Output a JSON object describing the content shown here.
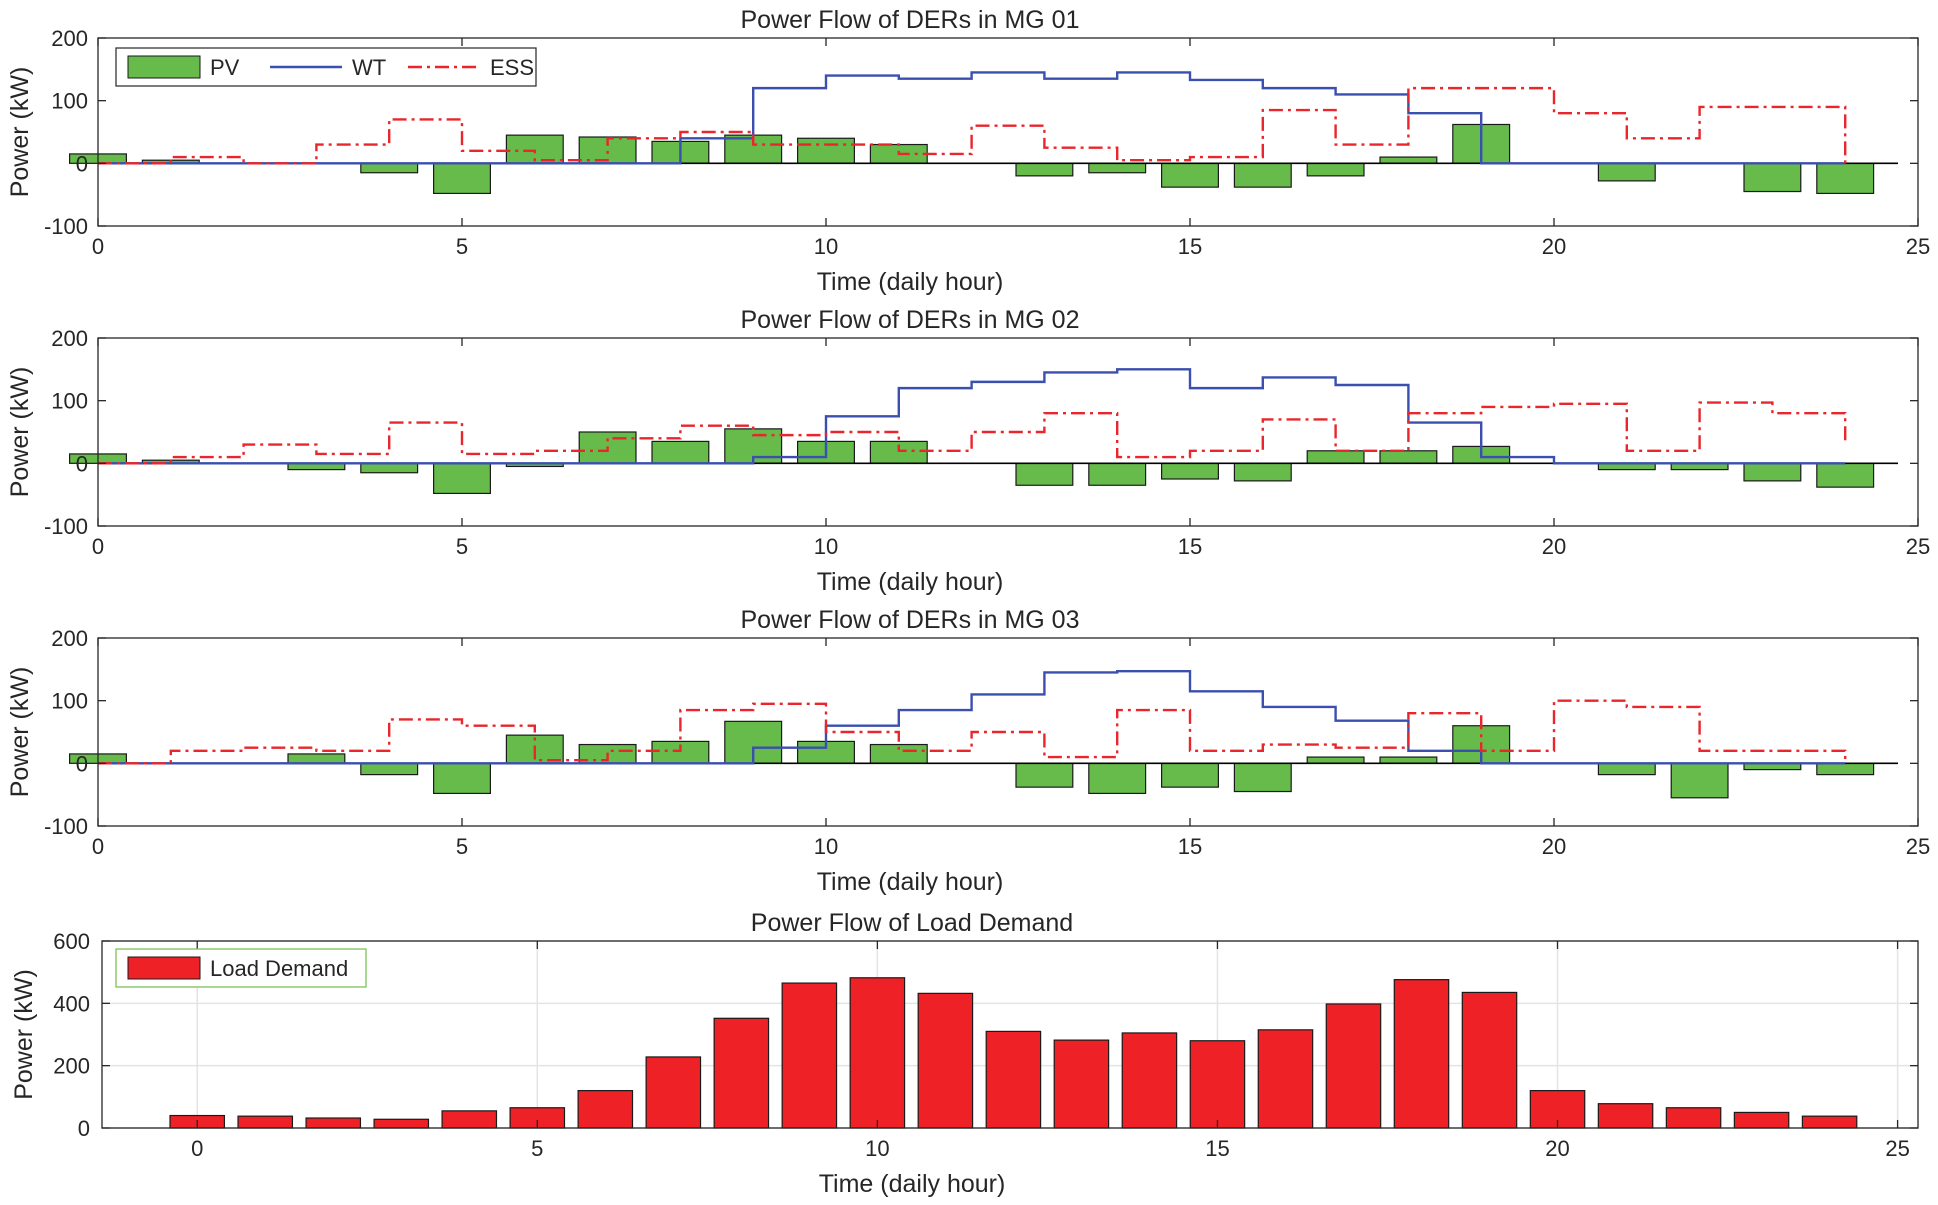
{
  "chart_data": [
    {
      "type": "bar",
      "title": "Power Flow of DERs in MG 01",
      "xlabel": "Time (daily hour)",
      "ylabel": "Power (kW)",
      "xlim": [
        0,
        25
      ],
      "ylim": [
        -100,
        200
      ],
      "xticks": [
        0,
        5,
        10,
        15,
        20,
        25
      ],
      "yticks": [
        -100,
        0,
        100,
        200
      ],
      "legend": [
        "PV",
        "WT",
        "ESS"
      ],
      "series": [
        {
          "name": "PV",
          "kind": "bar",
          "color": "#66bb4a",
          "x": [
            0,
            1,
            2,
            3,
            4,
            5,
            6,
            7,
            8,
            9,
            10,
            11,
            12,
            13,
            14,
            15,
            16,
            17,
            18,
            19,
            20,
            21,
            22,
            23,
            24
          ],
          "values": [
            15,
            5,
            0,
            0,
            -15,
            -48,
            45,
            42,
            35,
            45,
            40,
            30,
            0,
            -20,
            -15,
            -38,
            -38,
            -20,
            10,
            62,
            0,
            -28,
            0,
            -45,
            -48
          ]
        },
        {
          "name": "WT",
          "kind": "stairs",
          "color": "#3a4fae",
          "x": [
            0,
            1,
            2,
            3,
            4,
            5,
            6,
            7,
            8,
            9,
            10,
            11,
            12,
            13,
            14,
            15,
            16,
            17,
            18,
            19,
            20,
            21,
            22,
            23,
            24
          ],
          "values": [
            0,
            0,
            0,
            0,
            0,
            0,
            0,
            0,
            40,
            120,
            140,
            135,
            145,
            135,
            145,
            133,
            120,
            110,
            80,
            0,
            0,
            0,
            0,
            0,
            0
          ]
        },
        {
          "name": "ESS",
          "kind": "stairs",
          "color": "#e8262b",
          "x": [
            0,
            1,
            2,
            3,
            4,
            5,
            6,
            7,
            8,
            9,
            10,
            11,
            12,
            13,
            14,
            15,
            16,
            17,
            18,
            19,
            20,
            21,
            22,
            23,
            24
          ],
          "values": [
            0,
            10,
            0,
            30,
            70,
            20,
            5,
            40,
            50,
            30,
            30,
            15,
            60,
            25,
            5,
            10,
            85,
            30,
            120,
            120,
            80,
            40,
            90,
            90,
            0
          ]
        }
      ]
    },
    {
      "type": "bar",
      "title": "Power Flow of DERs in MG 02",
      "xlabel": "Time (daily hour)",
      "ylabel": "Power (kW)",
      "xlim": [
        0,
        25
      ],
      "ylim": [
        -100,
        200
      ],
      "xticks": [
        0,
        5,
        10,
        15,
        20,
        25
      ],
      "yticks": [
        -100,
        0,
        100,
        200
      ],
      "series": [
        {
          "name": "PV",
          "kind": "bar",
          "color": "#66bb4a",
          "x": [
            0,
            1,
            2,
            3,
            4,
            5,
            6,
            7,
            8,
            9,
            10,
            11,
            12,
            13,
            14,
            15,
            16,
            17,
            18,
            19,
            20,
            21,
            22,
            23,
            24
          ],
          "values": [
            15,
            5,
            0,
            -10,
            -15,
            -48,
            -5,
            50,
            35,
            55,
            35,
            35,
            0,
            -35,
            -35,
            -25,
            -28,
            20,
            20,
            27,
            0,
            -10,
            -10,
            -28,
            -38
          ]
        },
        {
          "name": "WT",
          "kind": "stairs",
          "color": "#3a4fae",
          "x": [
            0,
            1,
            2,
            3,
            4,
            5,
            6,
            7,
            8,
            9,
            10,
            11,
            12,
            13,
            14,
            15,
            16,
            17,
            18,
            19,
            20,
            21,
            22,
            23,
            24
          ],
          "values": [
            0,
            0,
            0,
            0,
            0,
            0,
            0,
            0,
            0,
            10,
            75,
            120,
            130,
            145,
            150,
            120,
            137,
            125,
            65,
            10,
            0,
            0,
            0,
            0,
            0
          ]
        },
        {
          "name": "ESS",
          "kind": "stairs",
          "color": "#e8262b",
          "x": [
            0,
            1,
            2,
            3,
            4,
            5,
            6,
            7,
            8,
            9,
            10,
            11,
            12,
            13,
            14,
            15,
            16,
            17,
            18,
            19,
            20,
            21,
            22,
            23,
            24
          ],
          "values": [
            0,
            10,
            30,
            15,
            65,
            15,
            20,
            40,
            60,
            45,
            50,
            20,
            50,
            80,
            10,
            20,
            70,
            20,
            80,
            90,
            95,
            20,
            97,
            80,
            30
          ]
        }
      ]
    },
    {
      "type": "bar",
      "title": "Power Flow of DERs in MG 03",
      "xlabel": "Time (daily hour)",
      "ylabel": "Power (kW)",
      "xlim": [
        0,
        25
      ],
      "ylim": [
        -100,
        200
      ],
      "xticks": [
        0,
        5,
        10,
        15,
        20,
        25
      ],
      "yticks": [
        -100,
        0,
        100,
        200
      ],
      "series": [
        {
          "name": "PV",
          "kind": "bar",
          "color": "#66bb4a",
          "x": [
            0,
            1,
            2,
            3,
            4,
            5,
            6,
            7,
            8,
            9,
            10,
            11,
            12,
            13,
            14,
            15,
            16,
            17,
            18,
            19,
            20,
            21,
            22,
            23,
            24
          ],
          "values": [
            15,
            0,
            0,
            15,
            -18,
            -48,
            45,
            30,
            35,
            67,
            35,
            30,
            0,
            -38,
            -48,
            -38,
            -45,
            10,
            10,
            60,
            0,
            -18,
            -55,
            -10,
            -18
          ]
        },
        {
          "name": "WT",
          "kind": "stairs",
          "color": "#3a4fae",
          "x": [
            0,
            1,
            2,
            3,
            4,
            5,
            6,
            7,
            8,
            9,
            10,
            11,
            12,
            13,
            14,
            15,
            16,
            17,
            18,
            19,
            20,
            21,
            22,
            23,
            24
          ],
          "values": [
            0,
            0,
            0,
            0,
            0,
            0,
            0,
            0,
            0,
            25,
            60,
            85,
            110,
            145,
            147,
            115,
            90,
            68,
            20,
            0,
            0,
            0,
            0,
            0,
            0
          ]
        },
        {
          "name": "ESS",
          "kind": "stairs",
          "color": "#e8262b",
          "x": [
            0,
            1,
            2,
            3,
            4,
            5,
            6,
            7,
            8,
            9,
            10,
            11,
            12,
            13,
            14,
            15,
            16,
            17,
            18,
            19,
            20,
            21,
            22,
            23,
            24
          ],
          "values": [
            0,
            20,
            25,
            20,
            70,
            60,
            5,
            20,
            85,
            95,
            50,
            20,
            50,
            10,
            85,
            20,
            30,
            25,
            80,
            20,
            100,
            90,
            20,
            20,
            0
          ]
        }
      ]
    },
    {
      "type": "bar",
      "title": "Power Flow of Load Demand",
      "xlabel": "Time (daily hour)",
      "ylabel": "Power (kW)",
      "xlim": [
        -1.4,
        25.3
      ],
      "ylim": [
        0,
        600
      ],
      "xticks": [
        0,
        5,
        10,
        15,
        20,
        25
      ],
      "yticks": [
        0,
        200,
        400,
        600
      ],
      "grid": true,
      "legend": [
        "Load Demand"
      ],
      "series": [
        {
          "name": "Load Demand",
          "kind": "bar",
          "color": "#ee2127",
          "x": [
            0,
            1,
            2,
            3,
            4,
            5,
            6,
            7,
            8,
            9,
            10,
            11,
            12,
            13,
            14,
            15,
            16,
            17,
            18,
            19,
            20,
            21,
            22,
            23,
            24
          ],
          "values": [
            40,
            38,
            32,
            28,
            55,
            65,
            120,
            228,
            352,
            465,
            482,
            432,
            310,
            282,
            305,
            280,
            315,
            398,
            476,
            435,
            120,
            78,
            65,
            50,
            38
          ]
        }
      ]
    }
  ]
}
